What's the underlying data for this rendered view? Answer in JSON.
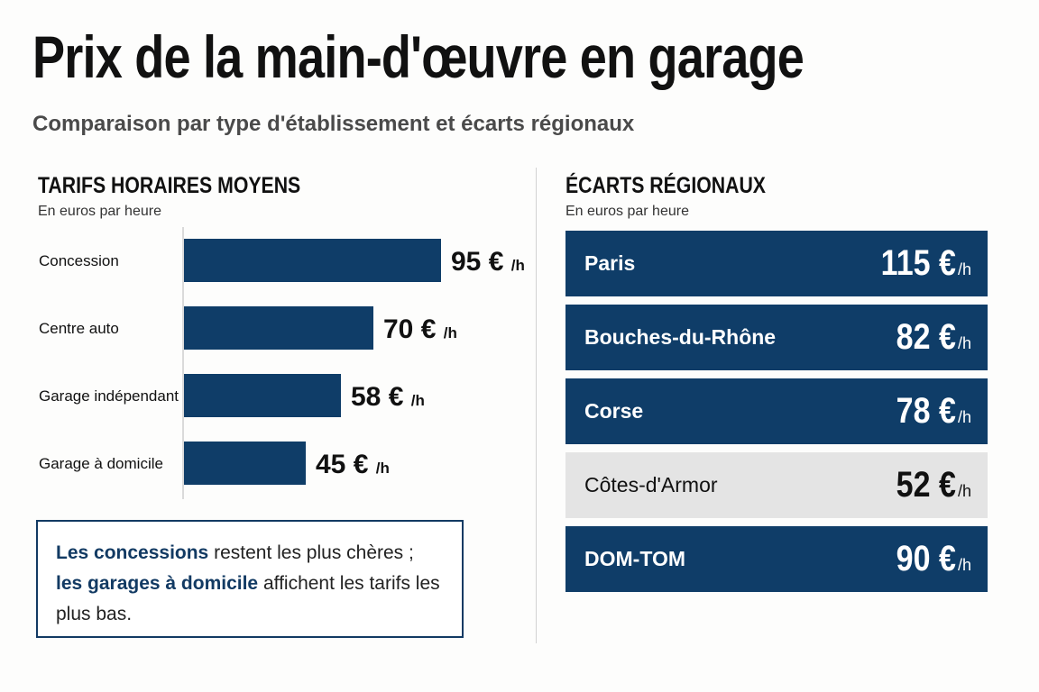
{
  "title": "Prix de la main-d'œuvre en garage",
  "subtitle": "Comparaison par type d'établissement et écarts régionaux",
  "left_section": {
    "title": "TARIFS HORAIRES MOYENS",
    "unit_note": "En euros par heure"
  },
  "right_section": {
    "title": "ÉCARTS RÉGIONAUX",
    "unit_note": "En euros par heure"
  },
  "chart_data": [
    {
      "type": "bar",
      "orientation": "horizontal",
      "title": "TARIFS HORAIRES MOYENS",
      "categories": [
        "Concession",
        "Centre auto",
        "Garage indépendant",
        "Garage à domicile"
      ],
      "values": [
        95,
        70,
        58,
        45
      ],
      "value_labels": [
        "95 €",
        "70 €",
        "58 €",
        "45 €"
      ],
      "value_suffix": "/h",
      "bar_color": "#0f3d68",
      "grid": false
    },
    {
      "type": "table",
      "title": "ÉCARTS RÉGIONAUX",
      "rows": [
        {
          "region": "Paris",
          "value": 115,
          "label": "115 €",
          "highlight": true
        },
        {
          "region": "Bouches-du-Rhône",
          "value": 82,
          "label": "82 €",
          "highlight": true
        },
        {
          "region": "Corse",
          "value": 78,
          "label": "78 €",
          "highlight": true
        },
        {
          "region": "Côtes-d'Armor",
          "value": 52,
          "label": "52 €",
          "highlight": false
        },
        {
          "region": "DOM-TOM",
          "value": 90,
          "label": "90 €",
          "highlight": true
        }
      ],
      "value_suffix": "/h",
      "highlight_color": "#0f3d68",
      "neutral_color": "#e4e4e4"
    }
  ],
  "callout": {
    "hl1": "Les concessions",
    "text1": " restent les plus chères ;",
    "hl2": "les garages à domicile",
    "text2": " affichent les tarifs les plus bas."
  }
}
